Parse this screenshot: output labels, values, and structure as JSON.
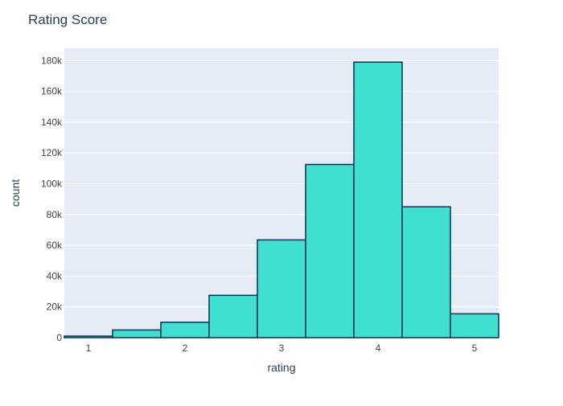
{
  "chart_data": {
    "type": "bar",
    "title": "Rating Score",
    "xlabel": "rating",
    "ylabel": "count",
    "bins": [
      {
        "x0": 0.75,
        "x1": 1.25,
        "value": 1000
      },
      {
        "x0": 1.25,
        "x1": 1.75,
        "value": 5000
      },
      {
        "x0": 1.75,
        "x1": 2.25,
        "value": 10000
      },
      {
        "x0": 2.25,
        "x1": 2.75,
        "value": 27500
      },
      {
        "x0": 2.75,
        "x1": 3.25,
        "value": 63500
      },
      {
        "x0": 3.25,
        "x1": 3.75,
        "value": 112500
      },
      {
        "x0": 3.75,
        "x1": 4.25,
        "value": 179000
      },
      {
        "x0": 4.25,
        "x1": 4.75,
        "value": 85000
      },
      {
        "x0": 4.75,
        "x1": 5.25,
        "value": 15500
      }
    ],
    "xlim": [
      0.75,
      5.25
    ],
    "ylim": [
      0,
      188000
    ],
    "x_ticks": [
      {
        "value": 1,
        "label": "1"
      },
      {
        "value": 2,
        "label": "2"
      },
      {
        "value": 3,
        "label": "3"
      },
      {
        "value": 4,
        "label": "4"
      },
      {
        "value": 5,
        "label": "5"
      }
    ],
    "y_ticks": [
      {
        "value": 0,
        "label": "0"
      },
      {
        "value": 20000,
        "label": "20k"
      },
      {
        "value": 40000,
        "label": "40k"
      },
      {
        "value": 60000,
        "label": "60k"
      },
      {
        "value": 80000,
        "label": "80k"
      },
      {
        "value": 100000,
        "label": "100k"
      },
      {
        "value": 120000,
        "label": "120k"
      },
      {
        "value": 140000,
        "label": "140k"
      },
      {
        "value": 160000,
        "label": "160k"
      },
      {
        "value": 180000,
        "label": "180k"
      }
    ],
    "grid": true,
    "colors": {
      "bar_fill": "#40e0d0",
      "bar_stroke": "#0b2f5a",
      "plot_bg": "#e5ecf6",
      "grid": "#ffffff",
      "text": "#2a3f5f",
      "tick_text": "#444444"
    }
  }
}
